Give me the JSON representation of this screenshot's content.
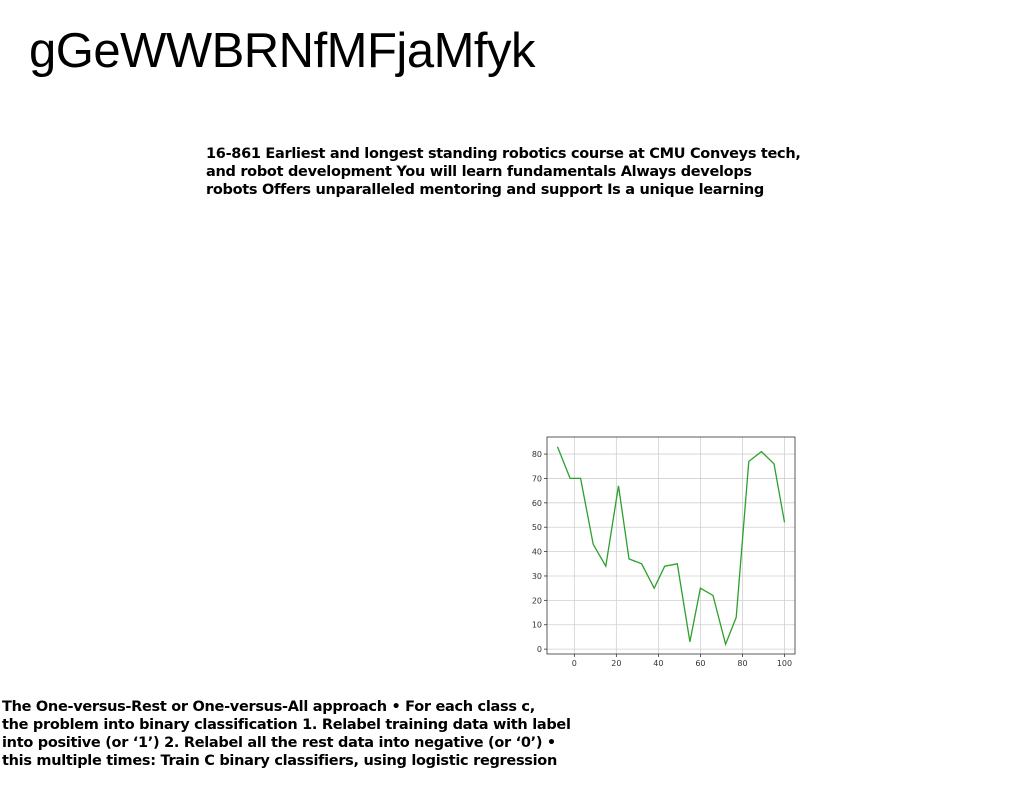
{
  "page": {
    "title": "gGeWWBRNfMFjaMfyk"
  },
  "top_paragraph": {
    "lines": [
      "16-861 Earliest and longest standing robotics course at CMU Conveys tech,",
      "and robot development You will learn fundamentals Always develops",
      "robots Offers unparalleled mentoring and support Is a unique learning"
    ]
  },
  "bottom_paragraph": {
    "lines": [
      "The One-versus-Rest or One-versus-All approach • For each class c,",
      "the problem into binary classification 1. Relabel training data with label",
      "into positive (or ‘1’) 2. Relabel all the rest data into negative (or ‘0’) •",
      "this multiple times: Train C binary classifiers, using logistic regression"
    ]
  },
  "chart_data": {
    "type": "line",
    "x": [
      -8,
      -2,
      3,
      9,
      15,
      21,
      26,
      32,
      38,
      43,
      49,
      55,
      60,
      66,
      72,
      77,
      83,
      89,
      95,
      100
    ],
    "series": [
      {
        "values": [
          83,
          70,
          70,
          43,
          34,
          67,
          37,
          35,
          25,
          34,
          35,
          3,
          25,
          22,
          2,
          13,
          77,
          81,
          76,
          52
        ],
        "color": "#2ca02c"
      }
    ],
    "xlim": [
      -13,
      105
    ],
    "ylim": [
      -2,
      87
    ],
    "xticks": [
      0,
      20,
      40,
      60,
      80,
      100
    ],
    "yticks": [
      0,
      10,
      20,
      30,
      40,
      50,
      60,
      70,
      80
    ],
    "grid": true,
    "title": "",
    "xlabel": "",
    "ylabel": ""
  }
}
